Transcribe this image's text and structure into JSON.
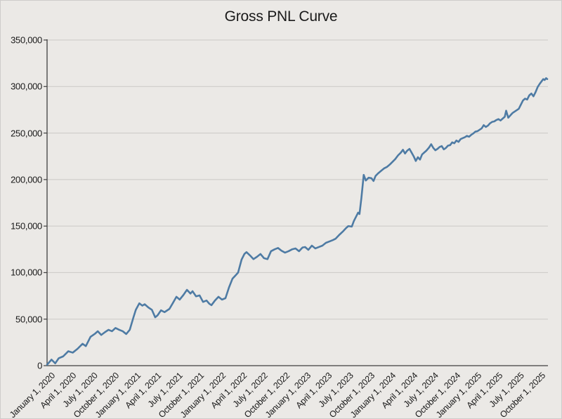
{
  "chart_data": {
    "type": "line",
    "title": "Gross PNL Curve",
    "xlabel": "",
    "ylabel": "",
    "legend": "none",
    "grid": "horizontal-only",
    "colors": {
      "line": "#4e7ba4",
      "background": "#ebe9e6",
      "gridline": "#cbc9c6",
      "spine": "#3f3f3f",
      "text": "#1a1a1a"
    },
    "ylim": [
      0,
      350000
    ],
    "y_ticks": [
      0,
      50000,
      100000,
      150000,
      200000,
      250000,
      300000,
      350000
    ],
    "x_domain": [
      "2020-01-01",
      "2025-11-15"
    ],
    "x_ticks": [
      [
        "2020-01-01",
        "January 1, 2020"
      ],
      [
        "2020-04-01",
        "April 1, 2020"
      ],
      [
        "2020-07-01",
        "July 1, 2020"
      ],
      [
        "2020-10-01",
        "October 1, 2020"
      ],
      [
        "2021-01-01",
        "January 1, 2021"
      ],
      [
        "2021-04-01",
        "April 1, 2021"
      ],
      [
        "2021-07-01",
        "July 1, 2021"
      ],
      [
        "2021-10-01",
        "October 1, 2021"
      ],
      [
        "2022-01-01",
        "January 1, 2022"
      ],
      [
        "2022-04-01",
        "April 1, 2022"
      ],
      [
        "2022-07-01",
        "July 1, 2022"
      ],
      [
        "2022-10-01",
        "October 1, 2022"
      ],
      [
        "2023-01-01",
        "January 1, 2023"
      ],
      [
        "2023-04-01",
        "April 1, 2023"
      ],
      [
        "2023-07-01",
        "July 1, 2023"
      ],
      [
        "2023-10-01",
        "October 1, 2023"
      ],
      [
        "2024-01-01",
        "January 1, 2024"
      ],
      [
        "2024-04-01",
        "April 1, 2024"
      ],
      [
        "2024-07-01",
        "July 1, 2024"
      ],
      [
        "2024-10-01",
        "October 1, 2024"
      ],
      [
        "2025-01-01",
        "January 1, 2025"
      ],
      [
        "2025-04-01",
        "April 1, 2025"
      ],
      [
        "2025-07-01",
        "July 1, 2025"
      ],
      [
        "2025-10-01",
        "October 1, 2025"
      ]
    ],
    "series": [
      {
        "name": "Gross PNL",
        "points": [
          [
            "2020-01-01",
            1000
          ],
          [
            "2020-01-20",
            6500
          ],
          [
            "2020-02-05",
            2500
          ],
          [
            "2020-02-20",
            8000
          ],
          [
            "2020-03-10",
            10000
          ],
          [
            "2020-04-01",
            15500
          ],
          [
            "2020-04-20",
            14000
          ],
          [
            "2020-05-10",
            18000
          ],
          [
            "2020-06-01",
            23500
          ],
          [
            "2020-06-15",
            21000
          ],
          [
            "2020-07-05",
            31000
          ],
          [
            "2020-07-25",
            34500
          ],
          [
            "2020-08-05",
            37000
          ],
          [
            "2020-08-20",
            33000
          ],
          [
            "2020-09-05",
            36000
          ],
          [
            "2020-09-20",
            38500
          ],
          [
            "2020-10-05",
            37000
          ],
          [
            "2020-10-20",
            40500
          ],
          [
            "2020-11-05",
            38500
          ],
          [
            "2020-11-20",
            37000
          ],
          [
            "2020-12-05",
            34000
          ],
          [
            "2020-12-20",
            38500
          ],
          [
            "2021-01-05",
            52000
          ],
          [
            "2021-01-15",
            60000
          ],
          [
            "2021-01-30",
            67000
          ],
          [
            "2021-02-12",
            64500
          ],
          [
            "2021-02-22",
            66000
          ],
          [
            "2021-03-10",
            62500
          ],
          [
            "2021-03-25",
            60000
          ],
          [
            "2021-04-08",
            52000
          ],
          [
            "2021-04-18",
            54000
          ],
          [
            "2021-05-03",
            59500
          ],
          [
            "2021-05-18",
            57500
          ],
          [
            "2021-06-08",
            61000
          ],
          [
            "2021-06-22",
            67000
          ],
          [
            "2021-07-08",
            74000
          ],
          [
            "2021-07-22",
            71000
          ],
          [
            "2021-08-07",
            76000
          ],
          [
            "2021-08-22",
            81500
          ],
          [
            "2021-09-06",
            77500
          ],
          [
            "2021-09-15",
            80000
          ],
          [
            "2021-09-30",
            74500
          ],
          [
            "2021-10-15",
            75500
          ],
          [
            "2021-10-30",
            68500
          ],
          [
            "2021-11-14",
            70000
          ],
          [
            "2021-11-26",
            66500
          ],
          [
            "2021-12-05",
            65000
          ],
          [
            "2021-12-20",
            70000
          ],
          [
            "2022-01-04",
            74000
          ],
          [
            "2022-01-19",
            71000
          ],
          [
            "2022-02-03",
            72500
          ],
          [
            "2022-02-18",
            84000
          ],
          [
            "2022-03-05",
            93500
          ],
          [
            "2022-03-20",
            97500
          ],
          [
            "2022-03-29",
            100000
          ],
          [
            "2022-04-13",
            114000
          ],
          [
            "2022-04-25",
            120000
          ],
          [
            "2022-05-04",
            122000
          ],
          [
            "2022-05-19",
            118500
          ],
          [
            "2022-06-03",
            114500
          ],
          [
            "2022-06-18",
            117000
          ],
          [
            "2022-07-03",
            120000
          ],
          [
            "2022-07-18",
            115500
          ],
          [
            "2022-08-02",
            114500
          ],
          [
            "2022-08-17",
            123000
          ],
          [
            "2022-09-01",
            125000
          ],
          [
            "2022-09-16",
            126500
          ],
          [
            "2022-10-01",
            123500
          ],
          [
            "2022-10-16",
            121500
          ],
          [
            "2022-10-31",
            123000
          ],
          [
            "2022-11-15",
            125000
          ],
          [
            "2022-11-30",
            126000
          ],
          [
            "2022-12-15",
            123000
          ],
          [
            "2022-12-30",
            127000
          ],
          [
            "2023-01-10",
            127500
          ],
          [
            "2023-01-24",
            124500
          ],
          [
            "2023-02-08",
            129000
          ],
          [
            "2023-02-23",
            126000
          ],
          [
            "2023-03-10",
            127500
          ],
          [
            "2023-03-25",
            129000
          ],
          [
            "2023-04-09",
            132000
          ],
          [
            "2023-04-24",
            133500
          ],
          [
            "2023-05-09",
            135000
          ],
          [
            "2023-05-21",
            136500
          ],
          [
            "2023-06-05",
            140500
          ],
          [
            "2023-06-20",
            144000
          ],
          [
            "2023-07-05",
            148000
          ],
          [
            "2023-07-14",
            150000
          ],
          [
            "2023-07-29",
            149500
          ],
          [
            "2023-08-07",
            155500
          ],
          [
            "2023-08-19",
            161500
          ],
          [
            "2023-08-25",
            164500
          ],
          [
            "2023-08-31",
            163000
          ],
          [
            "2023-09-08",
            180000
          ],
          [
            "2023-09-18",
            205000
          ],
          [
            "2023-09-27",
            199000
          ],
          [
            "2023-10-09",
            202000
          ],
          [
            "2023-10-21",
            201500
          ],
          [
            "2023-10-30",
            198500
          ],
          [
            "2023-11-08",
            204000
          ],
          [
            "2023-11-20",
            207000
          ],
          [
            "2023-12-02",
            209500
          ],
          [
            "2023-12-14",
            212000
          ],
          [
            "2023-12-26",
            213500
          ],
          [
            "2024-01-07",
            216000
          ],
          [
            "2024-01-19",
            219000
          ],
          [
            "2024-01-31",
            222000
          ],
          [
            "2024-02-12",
            226000
          ],
          [
            "2024-02-24",
            229000
          ],
          [
            "2024-03-04",
            232000
          ],
          [
            "2024-03-13",
            228000
          ],
          [
            "2024-03-22",
            231000
          ],
          [
            "2024-04-01",
            233000
          ],
          [
            "2024-04-10",
            229000
          ],
          [
            "2024-04-19",
            225000
          ],
          [
            "2024-04-28",
            220000
          ],
          [
            "2024-05-07",
            224000
          ],
          [
            "2024-05-16",
            221500
          ],
          [
            "2024-05-25",
            227000
          ],
          [
            "2024-06-03",
            229000
          ],
          [
            "2024-06-12",
            231000
          ],
          [
            "2024-06-24",
            234500
          ],
          [
            "2024-07-03",
            238000
          ],
          [
            "2024-07-12",
            234000
          ],
          [
            "2024-07-21",
            231500
          ],
          [
            "2024-07-30",
            233000
          ],
          [
            "2024-08-08",
            235000
          ],
          [
            "2024-08-17",
            236000
          ],
          [
            "2024-08-26",
            232500
          ],
          [
            "2024-09-04",
            234000
          ],
          [
            "2024-09-13",
            236500
          ],
          [
            "2024-09-22",
            237000
          ],
          [
            "2024-10-01",
            240000
          ],
          [
            "2024-10-10",
            239000
          ],
          [
            "2024-10-19",
            242000
          ],
          [
            "2024-10-28",
            240500
          ],
          [
            "2024-11-06",
            243500
          ],
          [
            "2024-11-15",
            244500
          ],
          [
            "2024-11-24",
            245500
          ],
          [
            "2024-12-03",
            247000
          ],
          [
            "2024-12-12",
            246000
          ],
          [
            "2024-12-21",
            248000
          ],
          [
            "2024-12-30",
            249500
          ],
          [
            "2025-01-08",
            251500
          ],
          [
            "2025-01-17",
            252000
          ],
          [
            "2025-01-26",
            253500
          ],
          [
            "2025-02-04",
            255000
          ],
          [
            "2025-02-13",
            258500
          ],
          [
            "2025-02-22",
            256500
          ],
          [
            "2025-03-03",
            258000
          ],
          [
            "2025-03-12",
            260500
          ],
          [
            "2025-03-21",
            262000
          ],
          [
            "2025-03-30",
            262500
          ],
          [
            "2025-04-08",
            264000
          ],
          [
            "2025-04-17",
            265000
          ],
          [
            "2025-04-26",
            263500
          ],
          [
            "2025-05-05",
            265500
          ],
          [
            "2025-05-14",
            267500
          ],
          [
            "2025-05-20",
            274000
          ],
          [
            "2025-05-29",
            266500
          ],
          [
            "2025-06-07",
            269000
          ],
          [
            "2025-06-16",
            271500
          ],
          [
            "2025-06-25",
            273000
          ],
          [
            "2025-07-04",
            274500
          ],
          [
            "2025-07-13",
            276000
          ],
          [
            "2025-07-22",
            280500
          ],
          [
            "2025-07-31",
            285000
          ],
          [
            "2025-08-09",
            287000
          ],
          [
            "2025-08-18",
            286000
          ],
          [
            "2025-08-27",
            290500
          ],
          [
            "2025-09-05",
            292500
          ],
          [
            "2025-09-14",
            289500
          ],
          [
            "2025-09-23",
            294000
          ],
          [
            "2025-10-02",
            299500
          ],
          [
            "2025-10-11",
            303000
          ],
          [
            "2025-10-20",
            306000
          ],
          [
            "2025-10-26",
            308000
          ],
          [
            "2025-11-01",
            307000
          ],
          [
            "2025-11-07",
            309000
          ],
          [
            "2025-11-12",
            308000
          ]
        ]
      }
    ]
  }
}
